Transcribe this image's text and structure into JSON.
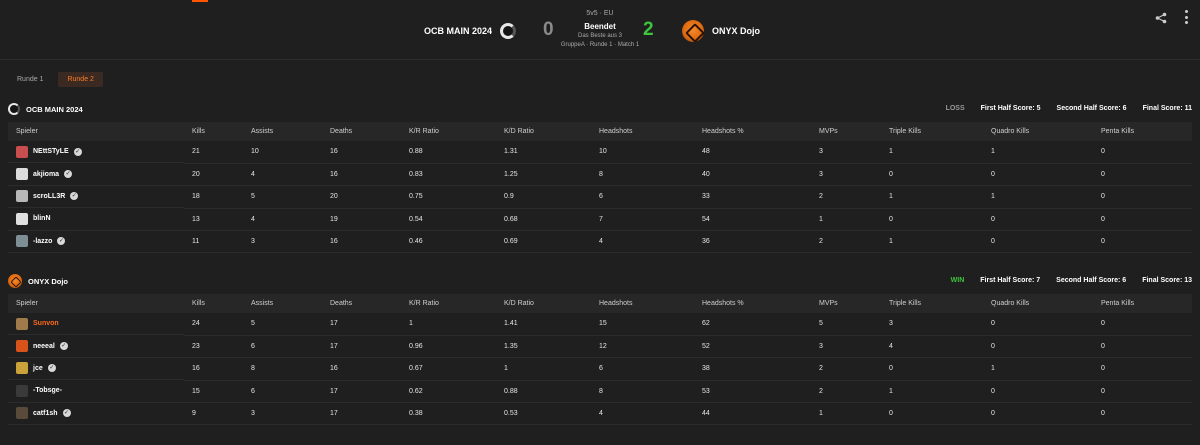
{
  "match": {
    "format": "5v5 · EU",
    "status": "Beendet",
    "best_of": "Das Beste aus 3",
    "group": "GruppeA · Runde 1 · Match 1",
    "team_a": {
      "name": "OCB MAIN 2024",
      "score": "0"
    },
    "team_b": {
      "name": "ONYX Dojo",
      "score": "2"
    }
  },
  "tabs": [
    "Runde 1",
    "Runde 2"
  ],
  "active_tab": "Runde 2",
  "columns": [
    "Spieler",
    "Kills",
    "Assists",
    "Deaths",
    "K/R Ratio",
    "K/D Ratio",
    "Headshots",
    "Headshots %",
    "MVPs",
    "Triple Kills",
    "Quadro Kills",
    "Penta Kills"
  ],
  "teams": [
    {
      "name": "OCB MAIN 2024",
      "result": "LOSS",
      "first_half": "First Half Score: 5",
      "second_half": "Second Half Score: 6",
      "final": "Final Score: 11",
      "players": [
        {
          "name": "NEttSTyLE",
          "verified": true,
          "avatar": "#c94f4f",
          "stats": [
            "21",
            "10",
            "16",
            "0.88",
            "1.31",
            "10",
            "48",
            "3",
            "1",
            "1",
            "0"
          ]
        },
        {
          "name": "akjioma",
          "verified": true,
          "avatar": "#dcdcdc",
          "stats": [
            "20",
            "4",
            "16",
            "0.83",
            "1.25",
            "8",
            "40",
            "3",
            "0",
            "0",
            "0"
          ]
        },
        {
          "name": "scroLL3R",
          "verified": true,
          "avatar": "#b8b8b8",
          "stats": [
            "18",
            "5",
            "20",
            "0.75",
            "0.9",
            "6",
            "33",
            "2",
            "1",
            "1",
            "0"
          ]
        },
        {
          "name": "blinN",
          "verified": false,
          "avatar": "#e0e0e0",
          "stats": [
            "13",
            "4",
            "19",
            "0.54",
            "0.68",
            "7",
            "54",
            "1",
            "0",
            "0",
            "0"
          ]
        },
        {
          "name": "-lazzo",
          "verified": true,
          "avatar": "#7d8e95",
          "stats": [
            "11",
            "3",
            "16",
            "0.46",
            "0.69",
            "4",
            "36",
            "2",
            "1",
            "0",
            "0"
          ]
        }
      ]
    },
    {
      "name": "ONYX Dojo",
      "result": "WIN",
      "first_half": "First Half Score: 7",
      "second_half": "Second Half Score: 6",
      "final": "Final Score: 13",
      "players": [
        {
          "name": "Sunvon",
          "verified": false,
          "highlight": true,
          "avatar": "#a07a4a",
          "stats": [
            "24",
            "5",
            "17",
            "1",
            "1.41",
            "15",
            "62",
            "5",
            "3",
            "0",
            "0"
          ]
        },
        {
          "name": "neeeal",
          "verified": true,
          "avatar": "#d8531a",
          "stats": [
            "23",
            "6",
            "17",
            "0.96",
            "1.35",
            "12",
            "52",
            "3",
            "4",
            "0",
            "0"
          ]
        },
        {
          "name": "jce",
          "verified": true,
          "avatar": "#c9a23a",
          "stats": [
            "16",
            "8",
            "16",
            "0.67",
            "1",
            "6",
            "38",
            "2",
            "0",
            "1",
            "0"
          ]
        },
        {
          "name": "-Tobsge-",
          "verified": false,
          "avatar": "#3a3a3a",
          "stats": [
            "15",
            "6",
            "17",
            "0.62",
            "0.88",
            "8",
            "53",
            "2",
            "1",
            "0",
            "0"
          ]
        },
        {
          "name": "catf1sh",
          "verified": true,
          "avatar": "#5a4a3a",
          "stats": [
            "9",
            "3",
            "17",
            "0.38",
            "0.53",
            "4",
            "44",
            "1",
            "0",
            "0",
            "0"
          ]
        }
      ]
    }
  ]
}
